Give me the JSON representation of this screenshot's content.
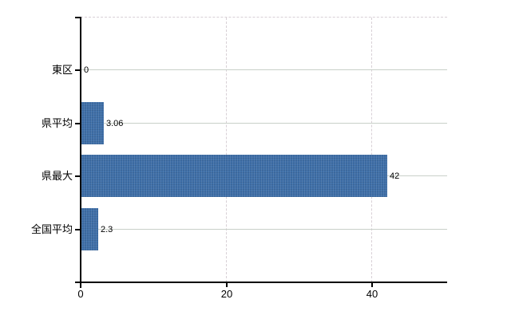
{
  "chart_data": {
    "type": "bar",
    "orientation": "horizontal",
    "title": "",
    "xlabel": "",
    "ylabel": "",
    "categories": [
      "東区",
      "県平均",
      "県最大",
      "全国平均"
    ],
    "values": [
      0,
      3.06,
      42,
      2.3
    ],
    "value_labels": [
      "0",
      "3.06",
      "42",
      "2.3"
    ],
    "x_ticks": [
      0,
      20,
      40
    ],
    "x_tick_labels": [
      "0",
      "20",
      "40"
    ],
    "xlim": [
      0,
      50.3
    ],
    "grid": {
      "vertical_dashed_at": [
        20,
        40
      ],
      "top_boundary_dashed": true,
      "category_lines": true
    },
    "legend": null,
    "colors": {
      "bar": "#3e6ea7",
      "axis": "#000000",
      "category_line": "#c9d0c9",
      "dashed_line": "#d8d0d6",
      "text": "#000000",
      "background": "#ffffff"
    }
  }
}
